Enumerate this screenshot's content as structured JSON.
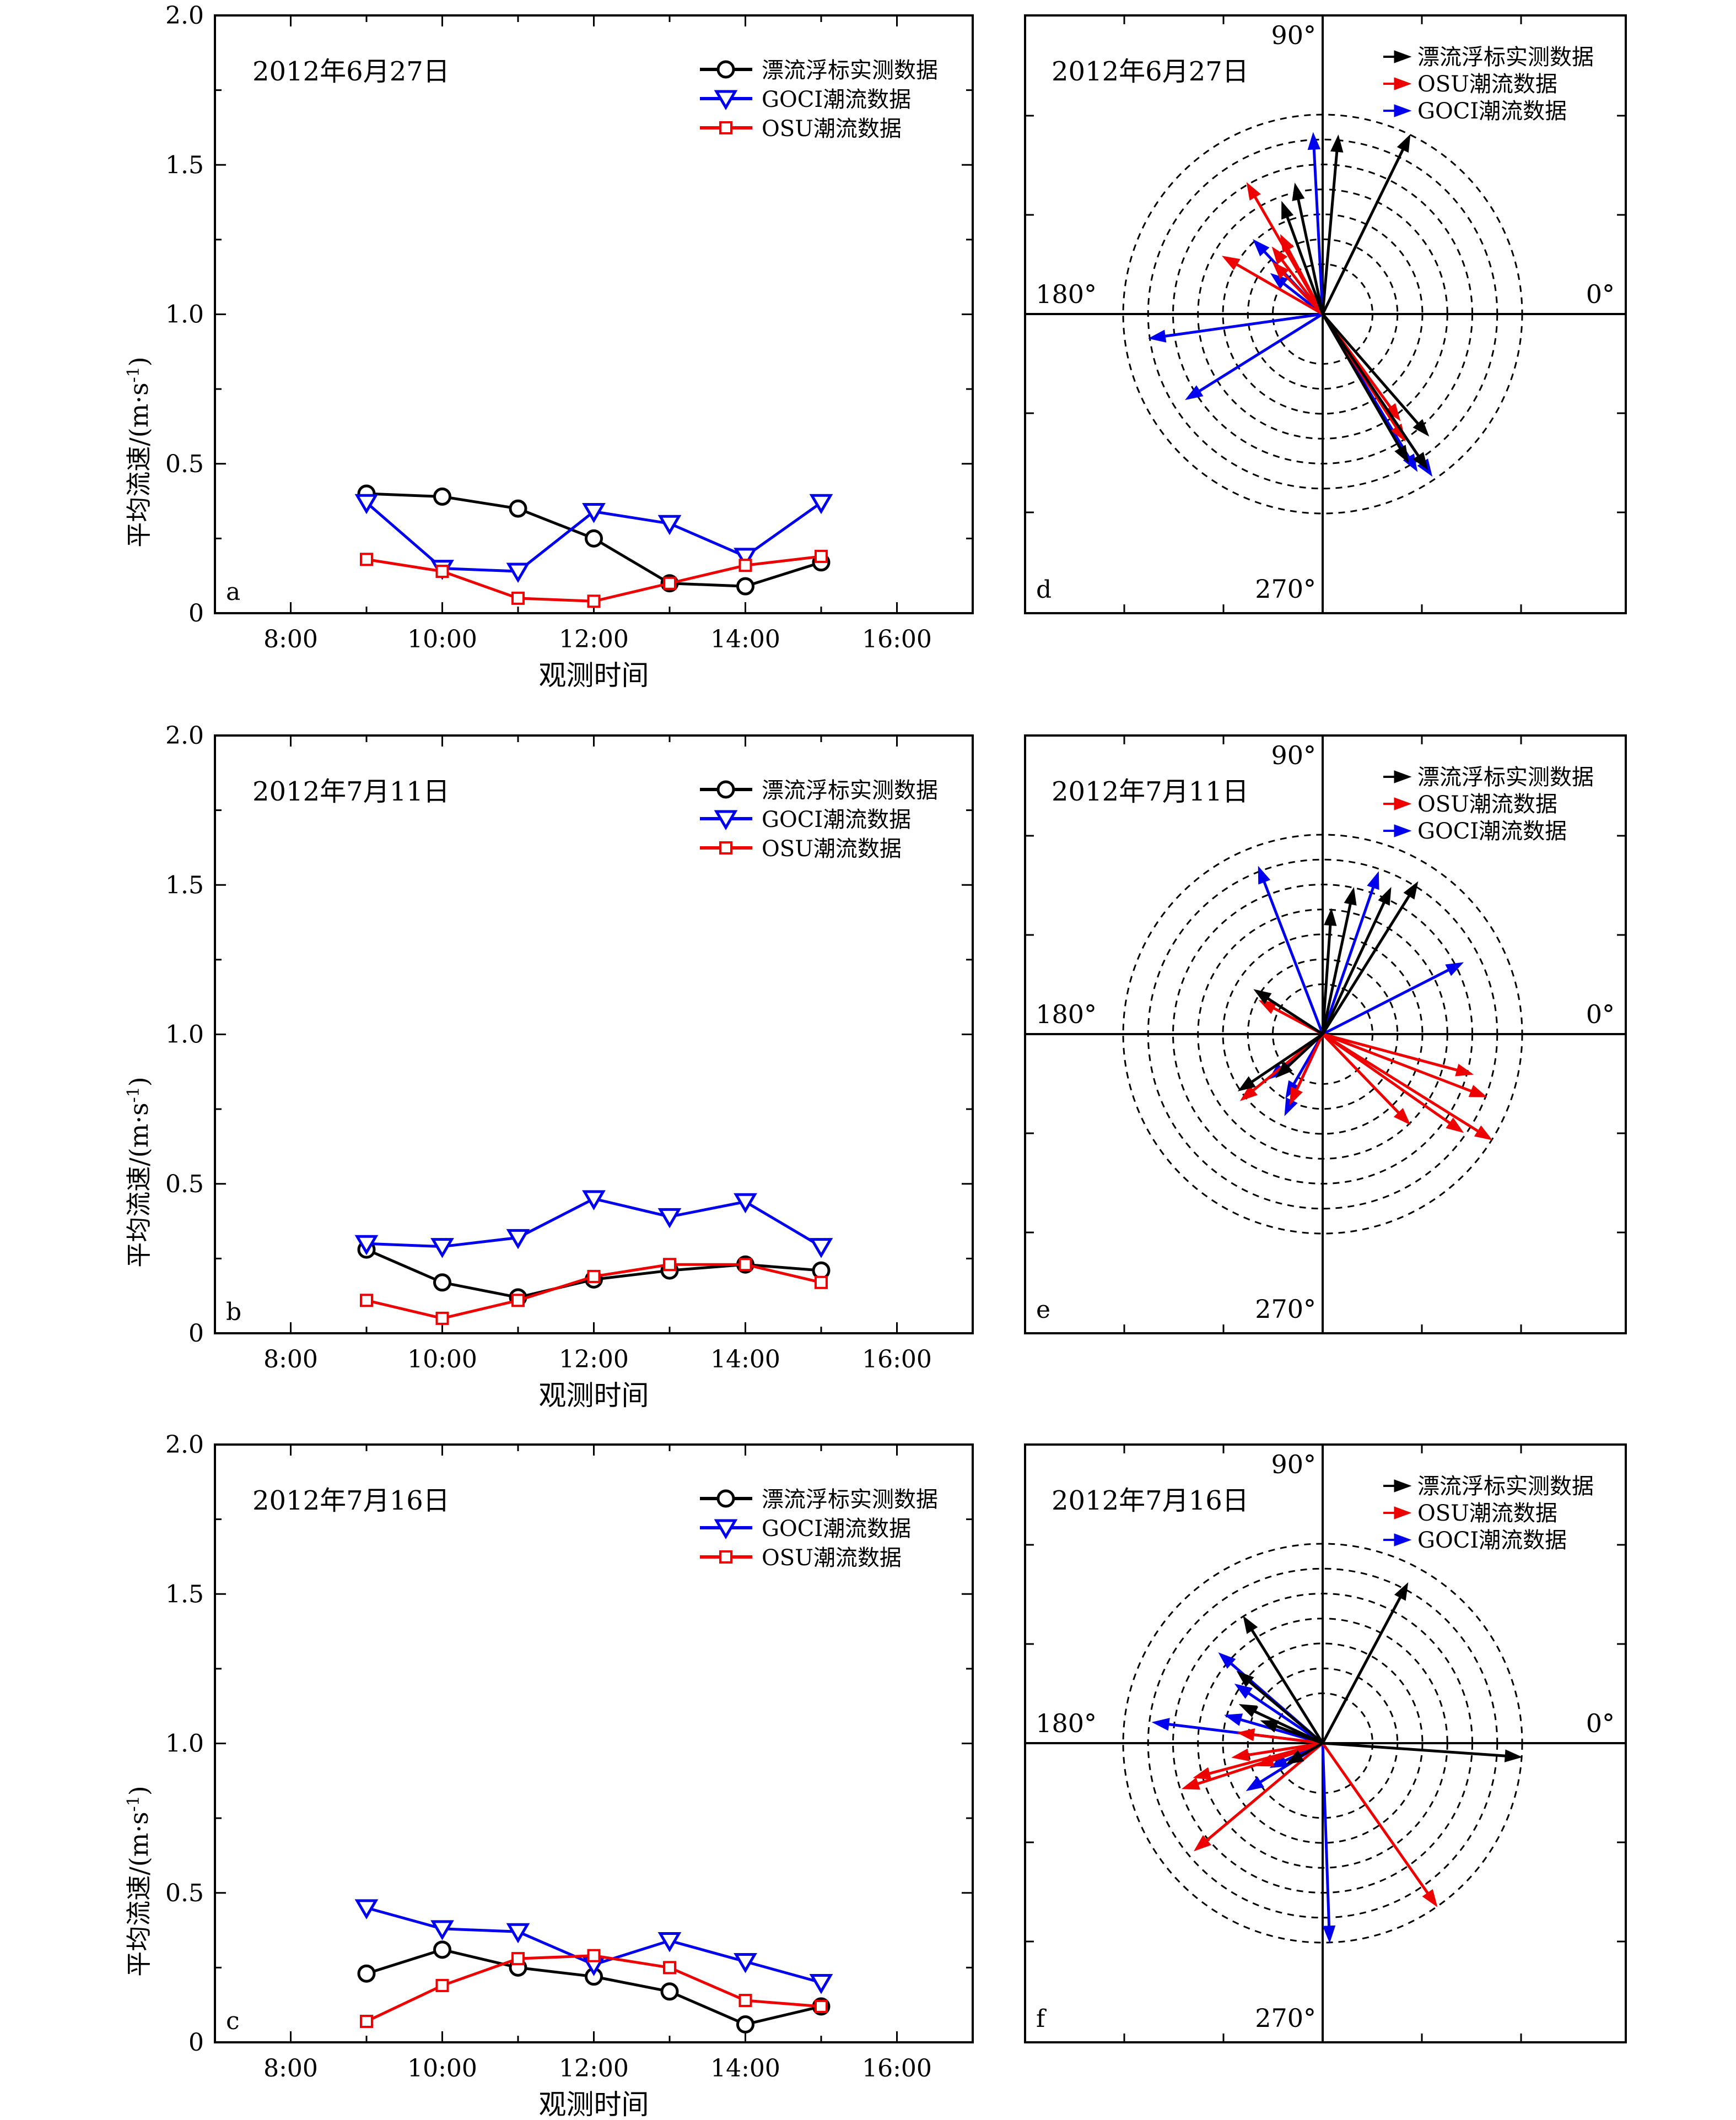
{
  "colors": {
    "buoy": "#000000",
    "goci": "#0000ee",
    "osu": "#ee0000"
  },
  "line_panels": [
    {
      "panel_label": "a",
      "date": "2012年6月27日",
      "legend": [
        "漂流浮标实测数据",
        "GOCI潮流数据",
        "OSU潮流数据"
      ],
      "ylabel": "平均流速/(m·s",
      "ylabel_sup": "-1",
      "ylabel_end": ")",
      "xlabel": "观测时间",
      "x_ticks": [
        "8:00",
        "10:00",
        "12:00",
        "14:00",
        "16:00"
      ],
      "y_ticks": [
        "0",
        "0.5",
        "1.0",
        "1.5",
        "2.0"
      ]
    },
    {
      "panel_label": "b",
      "date": "2012年7月11日",
      "legend": [
        "漂流浮标实测数据",
        "GOCI潮流数据",
        "OSU潮流数据"
      ],
      "ylabel": "平均流速/(m·s",
      "ylabel_sup": "-1",
      "ylabel_end": ")",
      "xlabel": "观测时间",
      "x_ticks": [
        "8:00",
        "10:00",
        "12:00",
        "14:00",
        "16:00"
      ],
      "y_ticks": [
        "0",
        "0.5",
        "1.0",
        "1.5",
        "2.0"
      ]
    },
    {
      "panel_label": "c",
      "date": "2012年7月16日",
      "legend": [
        "漂流浮标实测数据",
        "GOCI潮流数据",
        "OSU潮流数据"
      ],
      "ylabel": "平均流速/(m·s",
      "ylabel_sup": "-1",
      "ylabel_end": ")",
      "xlabel": "观测时间",
      "x_ticks": [
        "8:00",
        "10:00",
        "12:00",
        "14:00",
        "16:00"
      ],
      "y_ticks": [
        "0",
        "0.5",
        "1.0",
        "1.5",
        "2.0"
      ]
    }
  ],
  "polar_panels": [
    {
      "panel_label": "d",
      "date": "2012年6月27日",
      "legend": [
        "漂流浮标实测数据",
        "OSU潮流数据",
        "GOCI潮流数据"
      ],
      "angle_labels": [
        "90°",
        "180°",
        "0°",
        "270°"
      ]
    },
    {
      "panel_label": "e",
      "date": "2012年7月11日",
      "legend": [
        "漂流浮标实测数据",
        "OSU潮流数据",
        "GOCI潮流数据"
      ],
      "angle_labels": [
        "90°",
        "180°",
        "0°",
        "270°"
      ]
    },
    {
      "panel_label": "f",
      "date": "2012年7月16日",
      "legend": [
        "漂流浮标实测数据",
        "OSU潮流数据",
        "GOCI潮流数据"
      ],
      "angle_labels": [
        "90°",
        "180°",
        "0°",
        "270°"
      ]
    }
  ],
  "chart_data": [
    {
      "type": "line",
      "panel": "a",
      "x": [
        9,
        10,
        11,
        12,
        13,
        14,
        15
      ],
      "xlim": [
        7,
        17
      ],
      "ylim": [
        0,
        2
      ],
      "series": [
        {
          "name": "漂流浮标实测数据",
          "marker": "circle",
          "values": [
            0.4,
            0.39,
            0.35,
            0.25,
            0.1,
            0.09,
            0.17
          ]
        },
        {
          "name": "GOCI潮流数据",
          "marker": "triangle-down",
          "values": [
            0.37,
            0.15,
            0.14,
            0.34,
            0.3,
            0.19,
            0.37
          ]
        },
        {
          "name": "OSU潮流数据",
          "marker": "square",
          "values": [
            0.18,
            0.14,
            0.05,
            0.04,
            0.1,
            0.16,
            0.19
          ]
        }
      ]
    },
    {
      "type": "line",
      "panel": "b",
      "x": [
        9,
        10,
        11,
        12,
        13,
        14,
        15
      ],
      "xlim": [
        7,
        17
      ],
      "ylim": [
        0,
        2
      ],
      "series": [
        {
          "name": "漂流浮标实测数据",
          "marker": "circle",
          "values": [
            0.28,
            0.17,
            0.12,
            0.18,
            0.21,
            0.23,
            0.21
          ]
        },
        {
          "name": "GOCI潮流数据",
          "marker": "triangle-down",
          "values": [
            0.3,
            0.29,
            0.32,
            0.45,
            0.39,
            0.44,
            0.29
          ]
        },
        {
          "name": "OSU潮流数据",
          "marker": "square",
          "values": [
            0.11,
            0.05,
            0.11,
            0.19,
            0.23,
            0.23,
            0.17
          ]
        }
      ]
    },
    {
      "type": "line",
      "panel": "c",
      "x": [
        9,
        10,
        11,
        12,
        13,
        14,
        15
      ],
      "xlim": [
        7,
        17
      ],
      "ylim": [
        0,
        2
      ],
      "series": [
        {
          "name": "漂流浮标实测数据",
          "marker": "circle",
          "values": [
            0.23,
            0.31,
            0.25,
            0.22,
            0.17,
            0.06,
            0.12
          ]
        },
        {
          "name": "GOCI潮流数据",
          "marker": "triangle-down",
          "values": [
            0.45,
            0.38,
            0.37,
            0.26,
            0.34,
            0.27,
            0.2
          ]
        },
        {
          "name": "OSU潮流数据",
          "marker": "square",
          "values": [
            0.07,
            0.19,
            0.28,
            0.29,
            0.25,
            0.14,
            0.12
          ]
        }
      ]
    },
    {
      "type": "polar-vector",
      "panel": "d",
      "vectors": {
        "buoy": [
          [
            64,
            1.0
          ],
          [
            85,
            0.9
          ],
          [
            102,
            0.67
          ],
          [
            -49,
            0.81
          ],
          [
            -60,
            0.86
          ],
          [
            110,
            0.6
          ],
          [
            -56,
            0.94
          ]
        ],
        "osu": [
          [
            150,
            0.58
          ],
          [
            118,
            0.45
          ],
          [
            127,
            0.42
          ],
          [
            134,
            0.36
          ],
          [
            -54,
            0.66
          ],
          [
            -57,
            0.76
          ],
          [
            120,
            0.76
          ]
        ],
        "goci": [
          [
            93,
            0.91
          ],
          [
            188,
            0.88
          ],
          [
            212,
            0.81
          ],
          [
            133,
            0.51
          ],
          [
            142,
            0.33
          ],
          [
            -59,
            0.92
          ],
          [
            -56,
            0.98
          ]
        ]
      }
    },
    {
      "type": "polar-vector",
      "panel": "e",
      "vectors": {
        "buoy": [
          [
            86,
            0.63
          ],
          [
            78,
            0.75
          ],
          [
            65,
            0.81
          ],
          [
            58,
            0.9
          ],
          [
            147,
            0.41
          ],
          [
            214,
            0.51
          ],
          [
            223,
            0.32
          ]
        ],
        "osu": [
          [
            -15,
            0.78
          ],
          [
            -21,
            0.88
          ],
          [
            -35,
            0.86
          ],
          [
            -46,
            0.63
          ],
          [
            -32,
            1.0
          ],
          [
            152,
            0.36
          ],
          [
            219,
            0.53
          ],
          [
            245,
            0.39
          ]
        ],
        "goci": [
          [
            111,
            0.9
          ],
          [
            71,
            0.86
          ],
          [
            27,
            0.79
          ],
          [
            240,
            0.37
          ],
          [
            245,
            0.45
          ],
          [
            220,
            0.35
          ]
        ]
      }
    },
    {
      "type": "polar-vector",
      "panel": "f",
      "vectors": {
        "buoy": [
          [
            62,
            0.91
          ],
          [
            122,
            0.75
          ],
          [
            140,
            0.56
          ],
          [
            155,
            0.46
          ],
          [
            160,
            0.33
          ],
          [
            -4,
            1.0
          ],
          [
            210,
            0.21
          ]
        ],
        "osu": [
          [
            195,
            0.67
          ],
          [
            189,
            0.46
          ],
          [
            198,
            0.74
          ],
          [
            -55,
            1.0
          ],
          [
            220,
            0.84
          ],
          [
            173,
            0.43
          ],
          [
            199,
            0.35
          ]
        ],
        "goci": [
          [
            173,
            0.86
          ],
          [
            139,
            0.69
          ],
          [
            146,
            0.53
          ],
          [
            164,
            0.51
          ],
          [
            212,
            0.45
          ],
          [
            -88,
            1.0
          ],
          [
            205,
            0.29
          ]
        ]
      }
    }
  ]
}
